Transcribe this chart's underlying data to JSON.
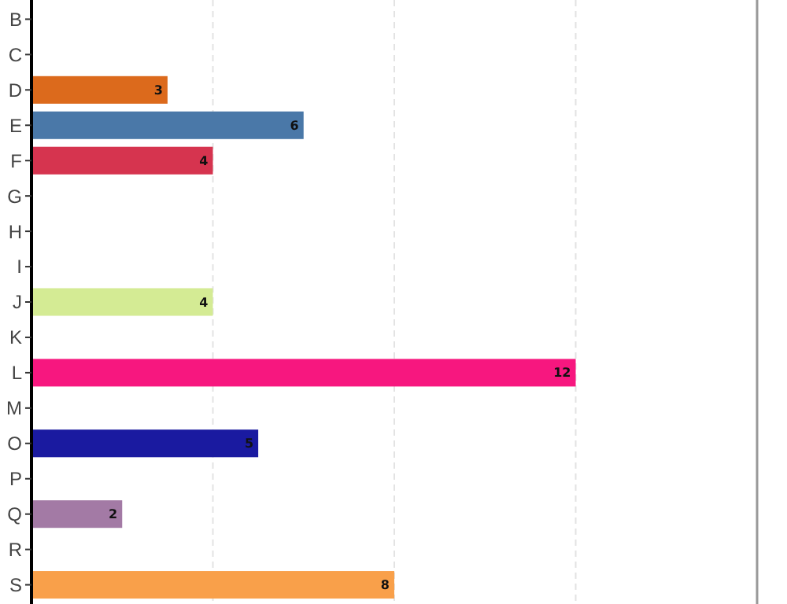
{
  "chart_data": {
    "type": "bar",
    "orientation": "horizontal",
    "categories": [
      "B",
      "C",
      "D",
      "E",
      "F",
      "G",
      "H",
      "I",
      "J",
      "K",
      "L",
      "M",
      "O",
      "P",
      "Q",
      "R",
      "S"
    ],
    "values": [
      null,
      null,
      3,
      6,
      4,
      null,
      null,
      null,
      4,
      null,
      12,
      null,
      5,
      null,
      2,
      null,
      8
    ],
    "colors": [
      null,
      null,
      "#dc6a1c",
      "#4a78a8",
      "#d6344f",
      null,
      null,
      null,
      "#d4eb94",
      null,
      "#f7177f",
      null,
      "#1a1aa0",
      null,
      "#a37aa5",
      null,
      "#f9a04a"
    ],
    "xlim": [
      0,
      16
    ],
    "xticks": [
      {
        "value": 4,
        "label": null
      },
      {
        "value": 8,
        "label": null
      },
      {
        "value": 12,
        "label": null
      }
    ],
    "grid": "x",
    "tick_labels": "y",
    "data_labels": true
  }
}
